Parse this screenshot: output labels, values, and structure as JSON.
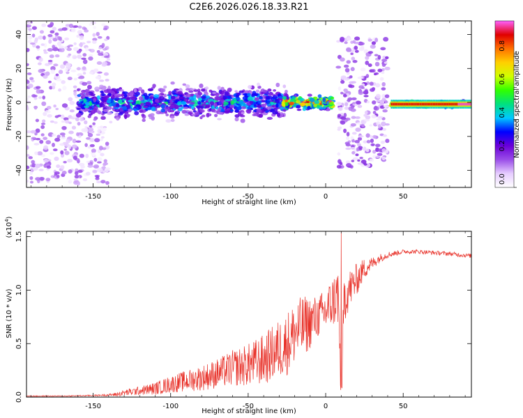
{
  "title": "C2E6.2026.026.18.33.R21",
  "chart_data": [
    {
      "type": "heatmap",
      "title": "C2E6.2026.026.18.33.R21",
      "xlabel": "Height of straight line (km)",
      "ylabel": "Frequency (Hz)",
      "xlim": [
        -193,
        94
      ],
      "ylim": [
        -50,
        48
      ],
      "xticks": [
        -150,
        -100,
        -50,
        0,
        50
      ],
      "xtick_labels": [
        "-150",
        "-100",
        "-50",
        "0",
        "50"
      ],
      "yticks": [
        -40,
        -20,
        0,
        20,
        40
      ],
      "ytick_labels": [
        "-40",
        "-20",
        "0",
        "20",
        "40"
      ],
      "colorbar": {
        "label": "Normalized spectral amplitude",
        "range": [
          0,
          1
        ],
        "ticks": [
          0.0,
          0.2,
          0.4,
          0.6,
          0.8
        ],
        "tick_labels": [
          "0.0",
          "0.2",
          "0.4",
          "0.6",
          "0.8"
        ],
        "colormap": [
          "#ffffff",
          "#e6ccff",
          "#9a4de8",
          "#6a00d8",
          "#0000ff",
          "#00c8ff",
          "#00e080",
          "#30ff00",
          "#d0ff00",
          "#ffd000",
          "#ff7000",
          "#e00000",
          "#ff60ff"
        ]
      },
      "regions": [
        {
          "x": [
            -193,
            -140
          ],
          "freq_spread": 48,
          "amplitude": 0.1,
          "description": "scattered noise"
        },
        {
          "x": [
            -160,
            -25
          ],
          "freq_center": 0,
          "freq_spread": 12,
          "amplitude": 0.3
        },
        {
          "x": [
            -27,
            5
          ],
          "freq_center": 0,
          "freq_spread": 5,
          "amplitude": 0.6
        },
        {
          "x": [
            8,
            40
          ],
          "freq_spread": 38,
          "amplitude": 0.12
        },
        {
          "x": [
            42,
            94
          ],
          "freq_center": -1,
          "freq_spread": 2,
          "amplitude": 0.85
        }
      ]
    },
    {
      "type": "line",
      "xlabel": "Height of straight line (km)",
      "ylabel": "SNR (10 * v/v)",
      "multiplier_label": "(x10",
      "multiplier_exp": "4",
      "multiplier_close": ")",
      "xlim": [
        -193,
        94
      ],
      "ylim": [
        0,
        1.55
      ],
      "xticks": [
        -150,
        -100,
        -50,
        0,
        50
      ],
      "xtick_labels": [
        "-150",
        "-100",
        "-50",
        "0",
        "50"
      ],
      "yticks": [
        0.0,
        0.5,
        1.0,
        1.5
      ],
      "ytick_labels": [
        "0.0",
        "0.5",
        "1.0",
        "1.5"
      ],
      "color": "#e8322a",
      "series": [
        {
          "name": "SNR",
          "x": [
            -193,
            -170,
            -150,
            -140,
            -135,
            -130,
            -120,
            -110,
            -100,
            -90,
            -80,
            -70,
            -60,
            -50,
            -40,
            -30,
            -25,
            -20,
            -15,
            -10,
            -5,
            0,
            5,
            8,
            10,
            12,
            15,
            20,
            25,
            30,
            35,
            40,
            50,
            60,
            70,
            80,
            94
          ],
          "y": [
            0.01,
            0.01,
            0.015,
            0.02,
            0.025,
            0.04,
            0.06,
            0.08,
            0.12,
            0.15,
            0.18,
            0.22,
            0.27,
            0.3,
            0.35,
            0.45,
            0.5,
            0.6,
            0.65,
            0.7,
            0.75,
            0.8,
            0.9,
            0.95,
            0.1,
            0.95,
            1.0,
            1.1,
            1.2,
            1.25,
            1.3,
            1.33,
            1.36,
            1.36,
            1.35,
            1.34,
            1.32
          ],
          "noise": [
            0.004,
            0.004,
            0.006,
            0.01,
            0.02,
            0.03,
            0.04,
            0.06,
            0.08,
            0.1,
            0.12,
            0.14,
            0.17,
            0.2,
            0.24,
            0.28,
            0.3,
            0.3,
            0.3,
            0.25,
            0.2,
            0.22,
            0.25,
            0.3,
            0.1,
            0.25,
            0.2,
            0.15,
            0.1,
            0.06,
            0.04,
            0.03,
            0.02,
            0.02,
            0.02,
            0.02,
            0.02
          ]
        }
      ]
    }
  ]
}
